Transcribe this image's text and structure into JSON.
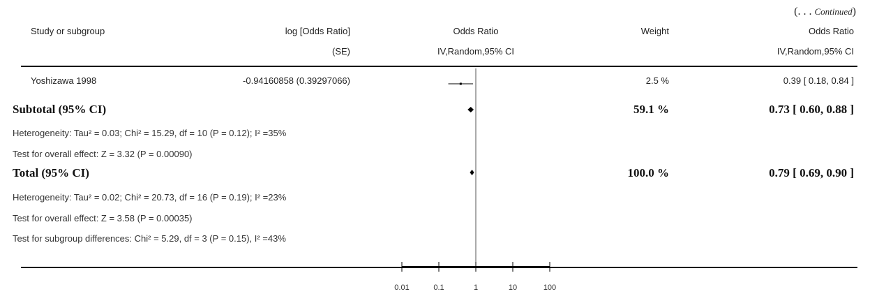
{
  "continued": "(. . . Continued)",
  "continued_prefix": "(. . . ",
  "continued_word": "Continued",
  "continued_suffix": ")",
  "headers": {
    "study": "Study or subgroup",
    "log_or": "log [Odds Ratio]",
    "log_or_sub": "(SE)",
    "odds_ratio": "Odds Ratio",
    "odds_ratio_sub": "IV,Random,95% CI",
    "weight": "Weight",
    "or_right": "Odds Ratio",
    "or_right_sub": "IV,Random,95% CI"
  },
  "rows": {
    "study1": {
      "name": "Yoshizawa 1998",
      "log_or": "-0.94160858 (0.39297066)",
      "weight": "2.5 %",
      "ci": "0.39 [ 0.18, 0.84 ]"
    },
    "subtotal": {
      "label": "Subtotal (95% CI)",
      "weight": "59.1 %",
      "ci": "0.73 [ 0.60, 0.88 ]",
      "heterogeneity": "Heterogeneity: Tau² = 0.03; Chi² = 15.29, df = 10 (P = 0.12); I² =35%",
      "overall": "Test for overall effect: Z = 3.32 (P = 0.00090)"
    },
    "total": {
      "label": "Total (95% CI)",
      "weight": "100.0 %",
      "ci": "0.79 [ 0.69, 0.90 ]",
      "heterogeneity": "Heterogeneity: Tau² = 0.02; Chi² = 20.73, df = 16 (P = 0.19); I² =23%",
      "overall": "Test for overall effect: Z = 3.58 (P = 0.00035)",
      "subgroup": "Test for subgroup differences: Chi² = 5.29, df = 3 (P = 0.15), I² =43%"
    }
  },
  "chart_data": {
    "type": "forest",
    "x_scale": "log",
    "xlim": [
      0.01,
      100
    ],
    "x_ticks": [
      0.01,
      0.1,
      1,
      10,
      100
    ],
    "x_tick_labels": [
      "0.01",
      "0.1",
      "1",
      "10",
      "100"
    ],
    "reference_line": 1,
    "studies": [
      {
        "name": "Yoshizawa 1998",
        "or": 0.39,
        "ci_low": 0.18,
        "ci_high": 0.84,
        "weight": 2.5
      }
    ],
    "summaries": [
      {
        "name": "Subtotal (95% CI)",
        "or": 0.73,
        "ci_low": 0.6,
        "ci_high": 0.88
      },
      {
        "name": "Total (95% CI)",
        "or": 0.79,
        "ci_low": 0.69,
        "ci_high": 0.9
      }
    ]
  }
}
